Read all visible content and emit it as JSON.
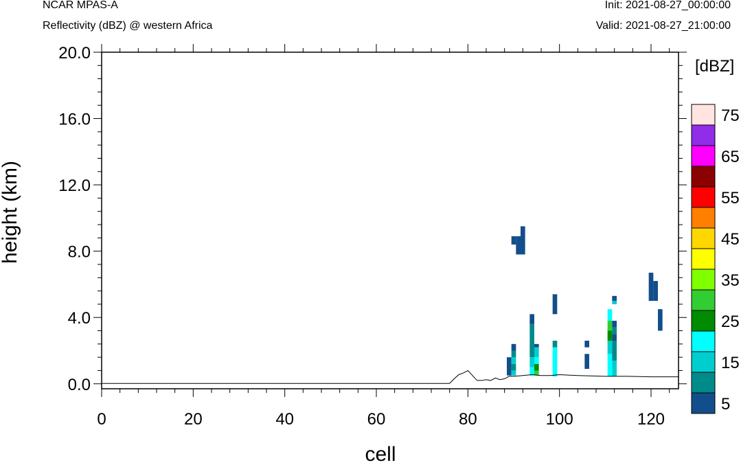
{
  "header": {
    "model": "NCAR MPAS-A",
    "field": "Reflectivity (dBZ) @ western Africa",
    "init": "Init: 2021-08-27_00:00:00",
    "valid": "Valid: 2021-08-27_21:00:00"
  },
  "chart_data": {
    "type": "heatmap",
    "title": "Reflectivity (dBZ) @ western Africa",
    "xlabel": "cell",
    "ylabel": "height (km)",
    "xlim": [
      0,
      126
    ],
    "ylim": [
      -0.3,
      20.0
    ],
    "xticks": [
      0,
      20,
      40,
      60,
      80,
      100,
      120
    ],
    "xtick_labels": [
      "0",
      "20",
      "40",
      "60",
      "80",
      "100",
      "120"
    ],
    "yticks": [
      0,
      4,
      8,
      12,
      16,
      20
    ],
    "ytick_labels": [
      "0.0",
      "4.0",
      "8.0",
      "12.0",
      "16.0",
      "20.0"
    ],
    "colorbar": {
      "label": "[dBZ]",
      "levels": [
        5,
        10,
        15,
        20,
        25,
        30,
        35,
        40,
        45,
        50,
        55,
        60,
        65,
        70,
        75
      ],
      "tick_labels": [
        "5",
        "15",
        "25",
        "35",
        "45",
        "55",
        "65",
        "75"
      ],
      "colors": [
        "#134e8c",
        "#008b8b",
        "#00cdcd",
        "#00ffff",
        "#008b00",
        "#32cd32",
        "#7fff00",
        "#ffff00",
        "#ffd700",
        "#ff7f00",
        "#ff0000",
        "#8b0000",
        "#ff00ff",
        "#912ce8",
        "#ffe4e1"
      ]
    },
    "terrain": [
      [
        0,
        0.02
      ],
      [
        76,
        0.02
      ],
      [
        77,
        0.3
      ],
      [
        78,
        0.55
      ],
      [
        79,
        0.65
      ],
      [
        80,
        0.8
      ],
      [
        81,
        0.5
      ],
      [
        82,
        0.2
      ],
      [
        83,
        0.2
      ],
      [
        84,
        0.25
      ],
      [
        85,
        0.2
      ],
      [
        86,
        0.35
      ],
      [
        87,
        0.25
      ],
      [
        88,
        0.3
      ],
      [
        89,
        0.45
      ],
      [
        90,
        0.45
      ],
      [
        92,
        0.5
      ],
      [
        94,
        0.55
      ],
      [
        96,
        0.5
      ],
      [
        98,
        0.5
      ],
      [
        100,
        0.55
      ],
      [
        104,
        0.5
      ],
      [
        110,
        0.45
      ],
      [
        115,
        0.45
      ],
      [
        120,
        0.42
      ],
      [
        126,
        0.42
      ]
    ],
    "cells": [
      {
        "x": 89,
        "y0": 0.5,
        "y1": 1.6,
        "dbz": 5
      },
      {
        "x": 90,
        "y0": 0.5,
        "y1": 0.8,
        "dbz": 15
      },
      {
        "x": 90,
        "y0": 0.8,
        "y1": 1.2,
        "dbz": 10
      },
      {
        "x": 90,
        "y0": 1.2,
        "y1": 1.6,
        "dbz": 15
      },
      {
        "x": 90,
        "y0": 1.6,
        "y1": 2.0,
        "dbz": 10
      },
      {
        "x": 90,
        "y0": 2.0,
        "y1": 2.4,
        "dbz": 5
      },
      {
        "x": 90,
        "y0": 8.4,
        "y1": 8.9,
        "dbz": 5
      },
      {
        "x": 91,
        "y0": 7.8,
        "y1": 8.9,
        "dbz": 5
      },
      {
        "x": 92,
        "y0": 7.8,
        "y1": 9.5,
        "dbz": 5
      },
      {
        "x": 94,
        "y0": 0.5,
        "y1": 1.0,
        "dbz": 20
      },
      {
        "x": 94,
        "y0": 1.0,
        "y1": 1.6,
        "dbz": 15
      },
      {
        "x": 94,
        "y0": 1.6,
        "y1": 3.6,
        "dbz": 10
      },
      {
        "x": 94,
        "y0": 3.6,
        "y1": 4.2,
        "dbz": 5
      },
      {
        "x": 95,
        "y0": 0.5,
        "y1": 0.8,
        "dbz": 30
      },
      {
        "x": 95,
        "y0": 0.8,
        "y1": 1.2,
        "dbz": 25
      },
      {
        "x": 95,
        "y0": 1.2,
        "y1": 1.6,
        "dbz": 20
      },
      {
        "x": 95,
        "y0": 1.6,
        "y1": 2.2,
        "dbz": 15
      },
      {
        "x": 95,
        "y0": 2.2,
        "y1": 2.4,
        "dbz": 5
      },
      {
        "x": 99,
        "y0": 0.45,
        "y1": 2.2,
        "dbz": 20
      },
      {
        "x": 99,
        "y0": 2.2,
        "y1": 2.6,
        "dbz": 10
      },
      {
        "x": 99,
        "y0": 4.2,
        "y1": 5.4,
        "dbz": 5
      },
      {
        "x": 106,
        "y0": 0.9,
        "y1": 1.8,
        "dbz": 5
      },
      {
        "x": 106,
        "y0": 2.2,
        "y1": 2.6,
        "dbz": 5
      },
      {
        "x": 111,
        "y0": 0.45,
        "y1": 1.8,
        "dbz": 20
      },
      {
        "x": 111,
        "y0": 1.8,
        "y1": 2.6,
        "dbz": 15
      },
      {
        "x": 111,
        "y0": 2.6,
        "y1": 3.2,
        "dbz": 25
      },
      {
        "x": 111,
        "y0": 3.2,
        "y1": 3.8,
        "dbz": 30
      },
      {
        "x": 111,
        "y0": 3.8,
        "y1": 4.5,
        "dbz": 20
      },
      {
        "x": 112,
        "y0": 0.45,
        "y1": 1.4,
        "dbz": 15
      },
      {
        "x": 112,
        "y0": 1.4,
        "y1": 2.6,
        "dbz": 10
      },
      {
        "x": 112,
        "y0": 2.6,
        "y1": 3.0,
        "dbz": 5
      },
      {
        "x": 112,
        "y0": 3.0,
        "y1": 3.4,
        "dbz": 10
      },
      {
        "x": 112,
        "y0": 3.4,
        "y1": 3.8,
        "dbz": 5
      },
      {
        "x": 112,
        "y0": 4.8,
        "y1": 5.0,
        "dbz": 15
      },
      {
        "x": 112,
        "y0": 5.0,
        "y1": 5.3,
        "dbz": 5
      },
      {
        "x": 120,
        "y0": 5.0,
        "y1": 6.7,
        "dbz": 5
      },
      {
        "x": 121,
        "y0": 5.0,
        "y1": 6.2,
        "dbz": 5
      },
      {
        "x": 122,
        "y0": 3.2,
        "y1": 4.5,
        "dbz": 5
      }
    ]
  }
}
